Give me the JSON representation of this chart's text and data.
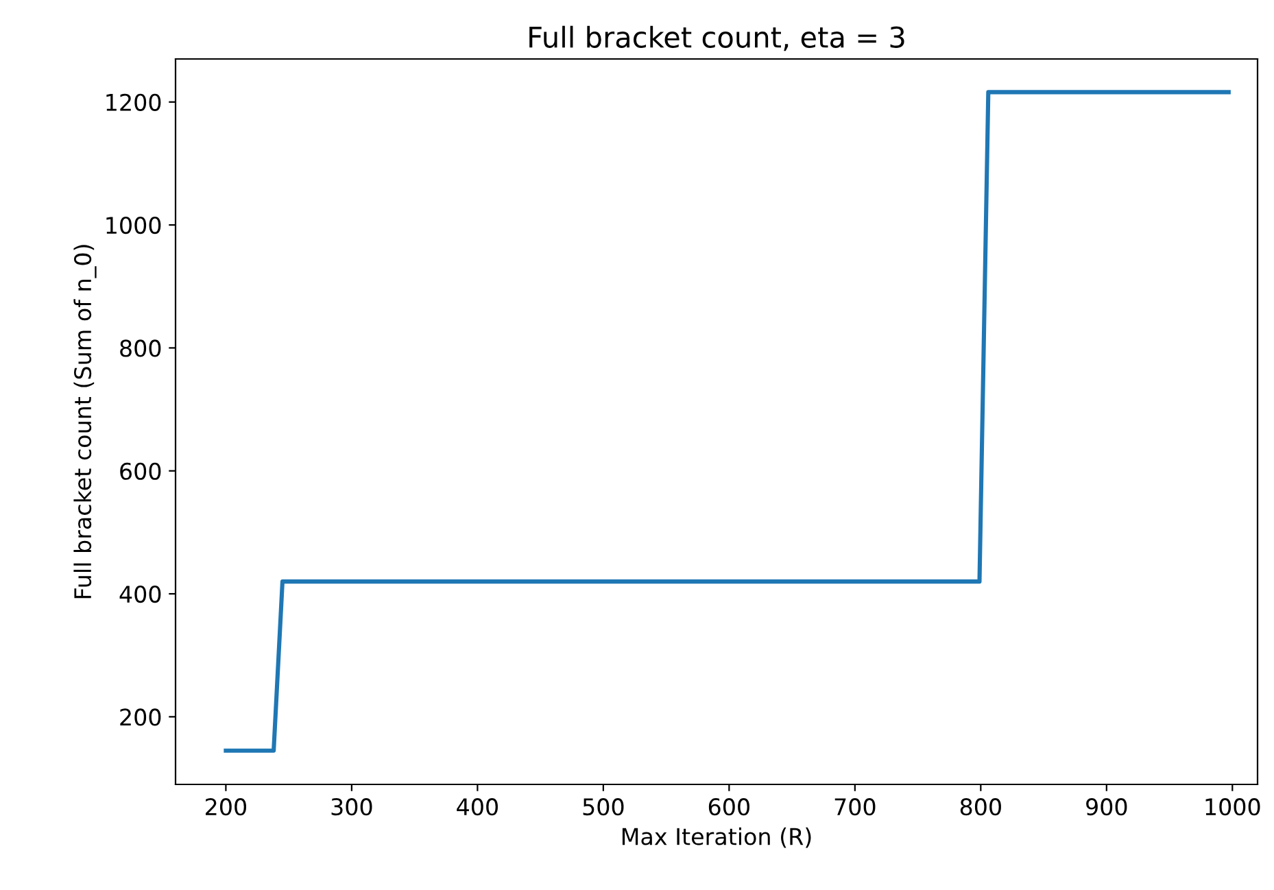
{
  "chart_data": {
    "type": "line",
    "title": "Full bracket count, eta = 3",
    "xlabel": "Max Iteration (R)",
    "ylabel": "Full bracket count (Sum of n_0)",
    "series": [
      {
        "color": "#1f77b4",
        "x": [
          200,
          238,
          245,
          799,
          806,
          997
        ],
        "values": [
          145,
          145,
          420,
          420,
          1216,
          1216
        ]
      }
    ],
    "xlim": [
      160,
      1020
    ],
    "xticks": [
      200,
      300,
      400,
      500,
      600,
      700,
      800,
      900,
      1000
    ],
    "ylim": [
      90,
      1270
    ],
    "yticks": [
      200,
      400,
      600,
      800,
      1000,
      1200
    ],
    "grid": false,
    "legend": false
  }
}
